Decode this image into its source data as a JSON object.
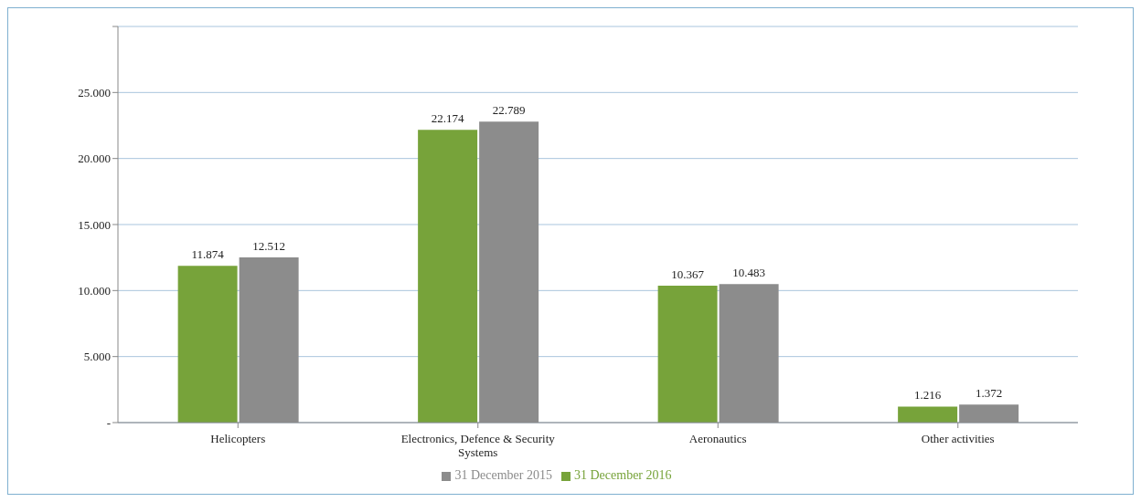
{
  "chart_data": {
    "type": "bar",
    "categories": [
      "Helicopters",
      "Electronics, Defence & Security Systems",
      "Aeronautics",
      "Other activities"
    ],
    "series": [
      {
        "name": "31 December 2016",
        "color": "#77a33a",
        "values": [
          11874,
          22174,
          10367,
          1216
        ],
        "value_labels": [
          "11.874",
          "22.174",
          "10.367",
          "1.216"
        ]
      },
      {
        "name": "31 December 2015",
        "color": "#8c8c8c",
        "values": [
          12512,
          22789,
          10483,
          1372
        ],
        "value_labels": [
          "12.512",
          "22.789",
          "10.483",
          "1.372"
        ]
      }
    ],
    "ylim": [
      0,
      30000
    ],
    "yticks": [
      {
        "value": 0,
        "label": "-"
      },
      {
        "value": 5000,
        "label": "5.000"
      },
      {
        "value": 10000,
        "label": "10.000"
      },
      {
        "value": 15000,
        "label": "15.000"
      },
      {
        "value": 20000,
        "label": "20.000"
      },
      {
        "value": 25000,
        "label": "25.000"
      },
      {
        "value": 30000,
        "label": null
      }
    ],
    "grid": "y",
    "legend": "bottom"
  }
}
